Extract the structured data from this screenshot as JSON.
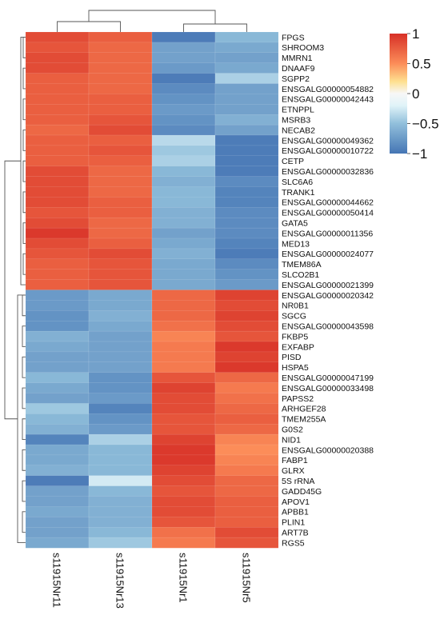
{
  "chart_data": {
    "type": "heatmap",
    "title": "",
    "xlabel": "",
    "ylabel": "",
    "columns": [
      "s11915Nr11",
      "s11915Nr13",
      "s11915Nr1",
      "s11915Nr5"
    ],
    "rows": [
      "FPGS",
      "SHROOM3",
      "MMRN1",
      "DNAAF9",
      "SGPP2",
      "ENSGALG00000054882",
      "ENSGALG00000042443",
      "ETNPPL",
      "MSRB3",
      "NECAB2",
      "ENSGALG00000049362",
      "ENSGALG00000010722",
      "CETP",
      "ENSGALG00000032836",
      "SLC6A6",
      "TRANK1",
      "ENSGALG00000044662",
      "ENSGALG00000050414",
      "GATA5",
      "ENSGALG00000011356",
      "MED13",
      "ENSGALG00000024077",
      "TMEM86A",
      "SLCO2B1",
      "ENSGALG00000021399",
      "ENSGALG00000020342",
      "NR0B1",
      "SGCG",
      "ENSGALG00000043598",
      "FKBP5",
      "EXFABP",
      "PISD",
      "HSPA5",
      "ENSGALG00000047199",
      "ENSGALG00000033498",
      "PAPSS2",
      "ARHGEF28",
      "TMEM255A",
      "G0S2",
      "NID1",
      "ENSGALG00000020388",
      "FABP1",
      "GLRX",
      "5S_rRNA",
      "GADD45G",
      "APOV1",
      "APBB1",
      "PLIN1",
      "ART7B",
      "RGS5"
    ],
    "values": [
      [
        0.85,
        0.75,
        -0.95,
        -0.55
      ],
      [
        0.8,
        0.7,
        -0.7,
        -0.65
      ],
      [
        0.85,
        0.7,
        -0.7,
        -0.7
      ],
      [
        0.85,
        0.7,
        -0.75,
        -0.65
      ],
      [
        0.75,
        0.7,
        -0.95,
        -0.4
      ],
      [
        0.75,
        0.7,
        -0.85,
        -0.7
      ],
      [
        0.75,
        0.75,
        -0.8,
        -0.7
      ],
      [
        0.75,
        0.75,
        -0.75,
        -0.7
      ],
      [
        0.75,
        0.8,
        -0.8,
        -0.6
      ],
      [
        0.7,
        0.85,
        -0.85,
        -0.7
      ],
      [
        0.75,
        0.75,
        -0.35,
        -0.95
      ],
      [
        0.75,
        0.8,
        -0.45,
        -0.95
      ],
      [
        0.75,
        0.75,
        -0.4,
        -0.95
      ],
      [
        0.85,
        0.7,
        -0.55,
        -0.95
      ],
      [
        0.85,
        0.7,
        -0.6,
        -0.85
      ],
      [
        0.85,
        0.7,
        -0.55,
        -0.9
      ],
      [
        0.85,
        0.75,
        -0.55,
        -0.9
      ],
      [
        0.8,
        0.75,
        -0.6,
        -0.85
      ],
      [
        0.85,
        0.7,
        -0.6,
        -0.85
      ],
      [
        0.95,
        0.7,
        -0.7,
        -0.85
      ],
      [
        0.85,
        0.75,
        -0.65,
        -0.9
      ],
      [
        0.8,
        0.85,
        -0.6,
        -0.95
      ],
      [
        0.75,
        0.8,
        -0.65,
        -0.85
      ],
      [
        0.75,
        0.8,
        -0.65,
        -0.8
      ],
      [
        0.75,
        0.8,
        -0.65,
        -0.75
      ],
      [
        -0.75,
        -0.65,
        0.7,
        0.9
      ],
      [
        -0.75,
        -0.65,
        0.7,
        0.85
      ],
      [
        -0.8,
        -0.6,
        0.7,
        0.9
      ],
      [
        -0.8,
        -0.65,
        0.65,
        0.85
      ],
      [
        -0.6,
        -0.7,
        0.55,
        0.8
      ],
      [
        -0.65,
        -0.7,
        0.6,
        0.95
      ],
      [
        -0.7,
        -0.7,
        0.6,
        0.9
      ],
      [
        -0.7,
        -0.7,
        0.6,
        0.95
      ],
      [
        -0.55,
        -0.8,
        0.8,
        0.7
      ],
      [
        -0.65,
        -0.8,
        0.9,
        0.6
      ],
      [
        -0.7,
        -0.75,
        0.85,
        0.65
      ],
      [
        -0.45,
        -0.9,
        0.85,
        0.7
      ],
      [
        -0.55,
        -0.8,
        0.8,
        0.75
      ],
      [
        -0.6,
        -0.75,
        0.8,
        0.7
      ],
      [
        -0.9,
        -0.4,
        0.9,
        0.55
      ],
      [
        -0.65,
        -0.55,
        0.95,
        0.5
      ],
      [
        -0.65,
        -0.55,
        0.95,
        0.55
      ],
      [
        -0.6,
        -0.55,
        0.9,
        0.6
      ],
      [
        -0.95,
        -0.25,
        0.85,
        0.7
      ],
      [
        -0.7,
        -0.55,
        0.8,
        0.7
      ],
      [
        -0.7,
        -0.6,
        0.85,
        0.75
      ],
      [
        -0.65,
        -0.6,
        0.85,
        0.75
      ],
      [
        -0.7,
        -0.6,
        0.8,
        0.75
      ],
      [
        -0.7,
        -0.55,
        0.65,
        0.85
      ],
      [
        -0.65,
        -0.45,
        0.6,
        0.8
      ]
    ],
    "colorbar": {
      "min": -1,
      "max": 1,
      "ticks": [
        "1",
        "0.5",
        "0",
        "−0.5",
        "−1"
      ],
      "tick_values": [
        1,
        0.5,
        0,
        -0.5,
        -1
      ]
    },
    "colors": {
      "high": "#d73027",
      "mid": "#f7f7f7",
      "low": "#4575b4"
    },
    "column_dendrogram": true,
    "row_dendrogram": true
  }
}
